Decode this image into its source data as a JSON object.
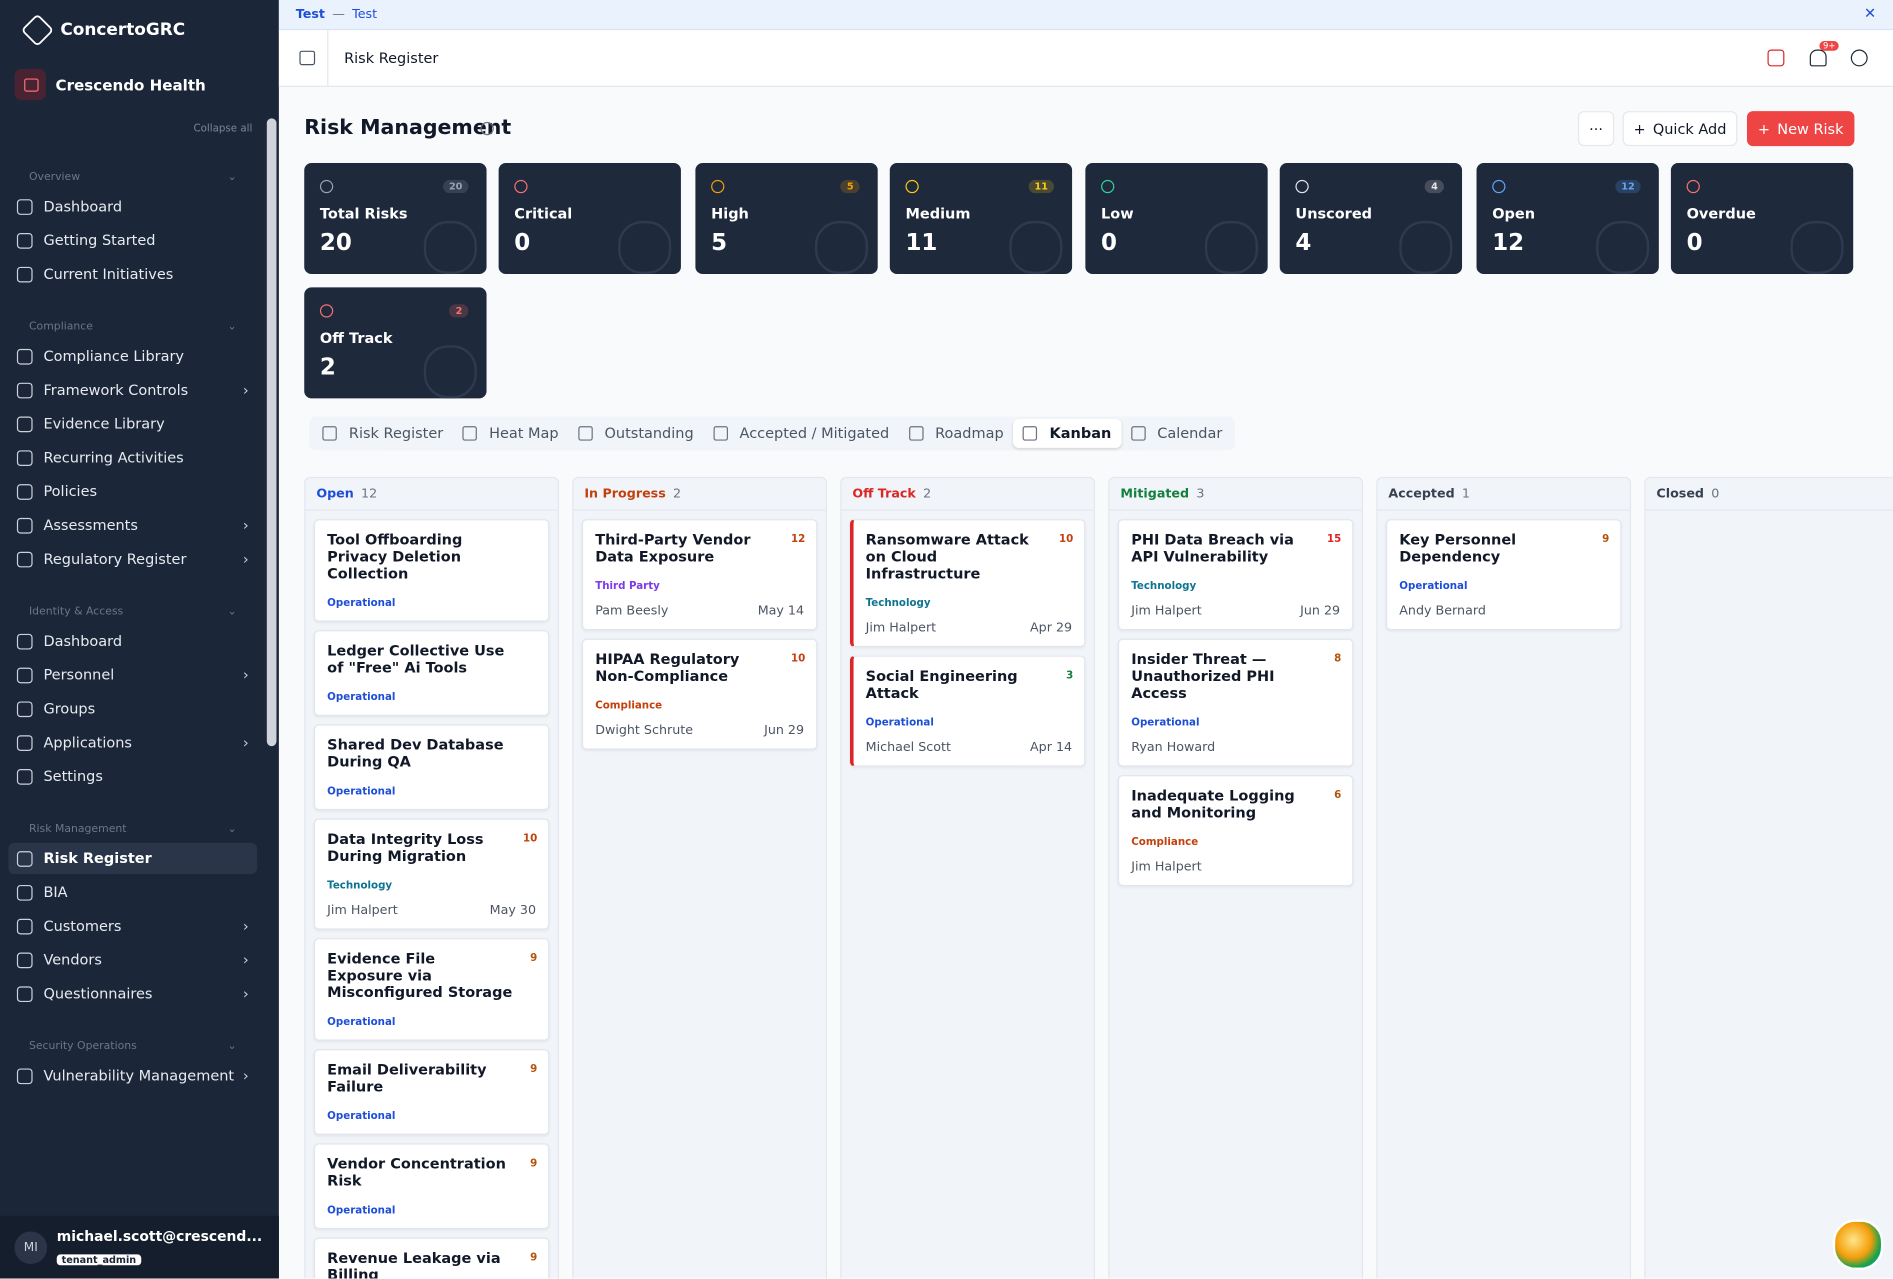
{
  "banner": {
    "label": "Test",
    "message": "Test"
  },
  "brand": "ConcertoGRC",
  "org": "Crescendo Health",
  "collapse": "Collapse all",
  "nav": [
    {
      "section": "Overview",
      "items": [
        {
          "label": "Dashboard"
        },
        {
          "label": "Getting Started"
        },
        {
          "label": "Current Initiatives"
        }
      ]
    },
    {
      "section": "Compliance",
      "items": [
        {
          "label": "Compliance Library"
        },
        {
          "label": "Framework Controls",
          "expandable": true
        },
        {
          "label": "Evidence Library"
        },
        {
          "label": "Recurring Activities"
        },
        {
          "label": "Policies"
        },
        {
          "label": "Assessments",
          "expandable": true
        },
        {
          "label": "Regulatory Register",
          "expandable": true
        }
      ]
    },
    {
      "section": "Identity & Access",
      "items": [
        {
          "label": "Dashboard"
        },
        {
          "label": "Personnel",
          "expandable": true
        },
        {
          "label": "Groups"
        },
        {
          "label": "Applications",
          "expandable": true
        },
        {
          "label": "Settings"
        }
      ]
    },
    {
      "section": "Risk Management",
      "items": [
        {
          "label": "Risk Register",
          "active": true
        },
        {
          "label": "BIA"
        },
        {
          "label": "Customers",
          "expandable": true
        },
        {
          "label": "Vendors",
          "expandable": true
        },
        {
          "label": "Questionnaires",
          "expandable": true
        }
      ]
    },
    {
      "section": "Security Operations",
      "items": [
        {
          "label": "Vulnerability Management",
          "expandable": true
        }
      ]
    }
  ],
  "user": {
    "initials": "MI",
    "email": "michael.scott@crescend...",
    "role": "tenant_admin"
  },
  "header": {
    "breadcrumb": "Risk Register",
    "notification_badge": "9+"
  },
  "page": {
    "title": "Risk Management",
    "more": "···",
    "quick_add": "Quick Add",
    "new_risk": "New Risk"
  },
  "stats": [
    {
      "label": "Total Risks",
      "value": 20,
      "badge": 20,
      "color": "#94a3b8"
    },
    {
      "label": "Critical",
      "value": 0,
      "color": "#f87171"
    },
    {
      "label": "High",
      "value": 5,
      "badge": 5,
      "color": "#f59e0b"
    },
    {
      "label": "Medium",
      "value": 11,
      "badge": 11,
      "color": "#facc15"
    },
    {
      "label": "Low",
      "value": 0,
      "color": "#34d399"
    },
    {
      "label": "Unscored",
      "value": 4,
      "badge": 4,
      "color": "#e5e7eb"
    },
    {
      "label": "Open",
      "value": 12,
      "badge": 12,
      "color": "#60a5fa"
    },
    {
      "label": "Overdue",
      "value": 0,
      "color": "#f87171"
    },
    {
      "label": "Off Track",
      "value": 2,
      "badge": 2,
      "color": "#f87171"
    }
  ],
  "tabs": [
    {
      "label": "Risk Register"
    },
    {
      "label": "Heat Map"
    },
    {
      "label": "Outstanding"
    },
    {
      "label": "Accepted / Mitigated"
    },
    {
      "label": "Roadmap"
    },
    {
      "label": "Kanban",
      "active": true
    },
    {
      "label": "Calendar"
    }
  ],
  "category_colors": {
    "Operational": "#1d4ed8",
    "Technology": "#0e7490",
    "Third Party": "#7c3aed",
    "Compliance": "#c2410c"
  },
  "columns": [
    {
      "name": "Open",
      "count": 12,
      "color": "#1d4ed8",
      "cards": [
        {
          "title": "Tool Offboarding Privacy Deletion Collection",
          "category": "Operational"
        },
        {
          "title": "Ledger Collective Use of \"Free\" Ai Tools",
          "category": "Operational"
        },
        {
          "title": "Shared Dev Database During QA",
          "category": "Operational"
        },
        {
          "title": "Data Integrity Loss During Migration",
          "score": 10,
          "category": "Technology",
          "owner": "Jim Halpert",
          "due": "May 30"
        },
        {
          "title": "Evidence File Exposure via Misconfigured Storage",
          "score": 9,
          "category": "Operational"
        },
        {
          "title": "Email Deliverability Failure",
          "score": 9,
          "category": "Operational"
        },
        {
          "title": "Vendor Concentration Risk",
          "score": 9,
          "category": "Operational"
        },
        {
          "title": "Revenue Leakage via Billing",
          "score": 9
        }
      ]
    },
    {
      "name": "In Progress",
      "count": 2,
      "color": "#c2410c",
      "cards": [
        {
          "title": "Third-Party Vendor Data Exposure",
          "score": 12,
          "category": "Third Party",
          "owner": "Pam Beesly",
          "due": "May 14"
        },
        {
          "title": "HIPAA Regulatory Non-Compliance",
          "score": 10,
          "category": "Compliance",
          "owner": "Dwight Schrute",
          "due": "Jun 29"
        }
      ]
    },
    {
      "name": "Off Track",
      "count": 2,
      "color": "#dc2626",
      "alert": true,
      "cards": [
        {
          "title": "Ransomware Attack on Cloud Infrastructure",
          "score": 10,
          "category": "Technology",
          "owner": "Jim Halpert",
          "due": "Apr 29"
        },
        {
          "title": "Social Engineering Attack",
          "score": 3,
          "category": "Operational",
          "owner": "Michael Scott",
          "due": "Apr 14"
        }
      ]
    },
    {
      "name": "Mitigated",
      "count": 3,
      "color": "#15803d",
      "cards": [
        {
          "title": "PHI Data Breach via API Vulnerability",
          "score": 15,
          "category": "Technology",
          "owner": "Jim Halpert",
          "due": "Jun 29"
        },
        {
          "title": "Insider Threat — Unauthorized PHI Access",
          "score": 8,
          "category": "Operational",
          "owner": "Ryan Howard"
        },
        {
          "title": "Inadequate Logging and Monitoring",
          "score": 6,
          "category": "Compliance",
          "owner": "Jim Halpert"
        }
      ]
    },
    {
      "name": "Accepted",
      "count": 1,
      "color": "#374151",
      "cards": [
        {
          "title": "Key Personnel Dependency",
          "score": 9,
          "category": "Operational",
          "owner": "Andy Bernard"
        }
      ]
    },
    {
      "name": "Closed",
      "count": 0,
      "color": "#374151",
      "cards": []
    }
  ]
}
